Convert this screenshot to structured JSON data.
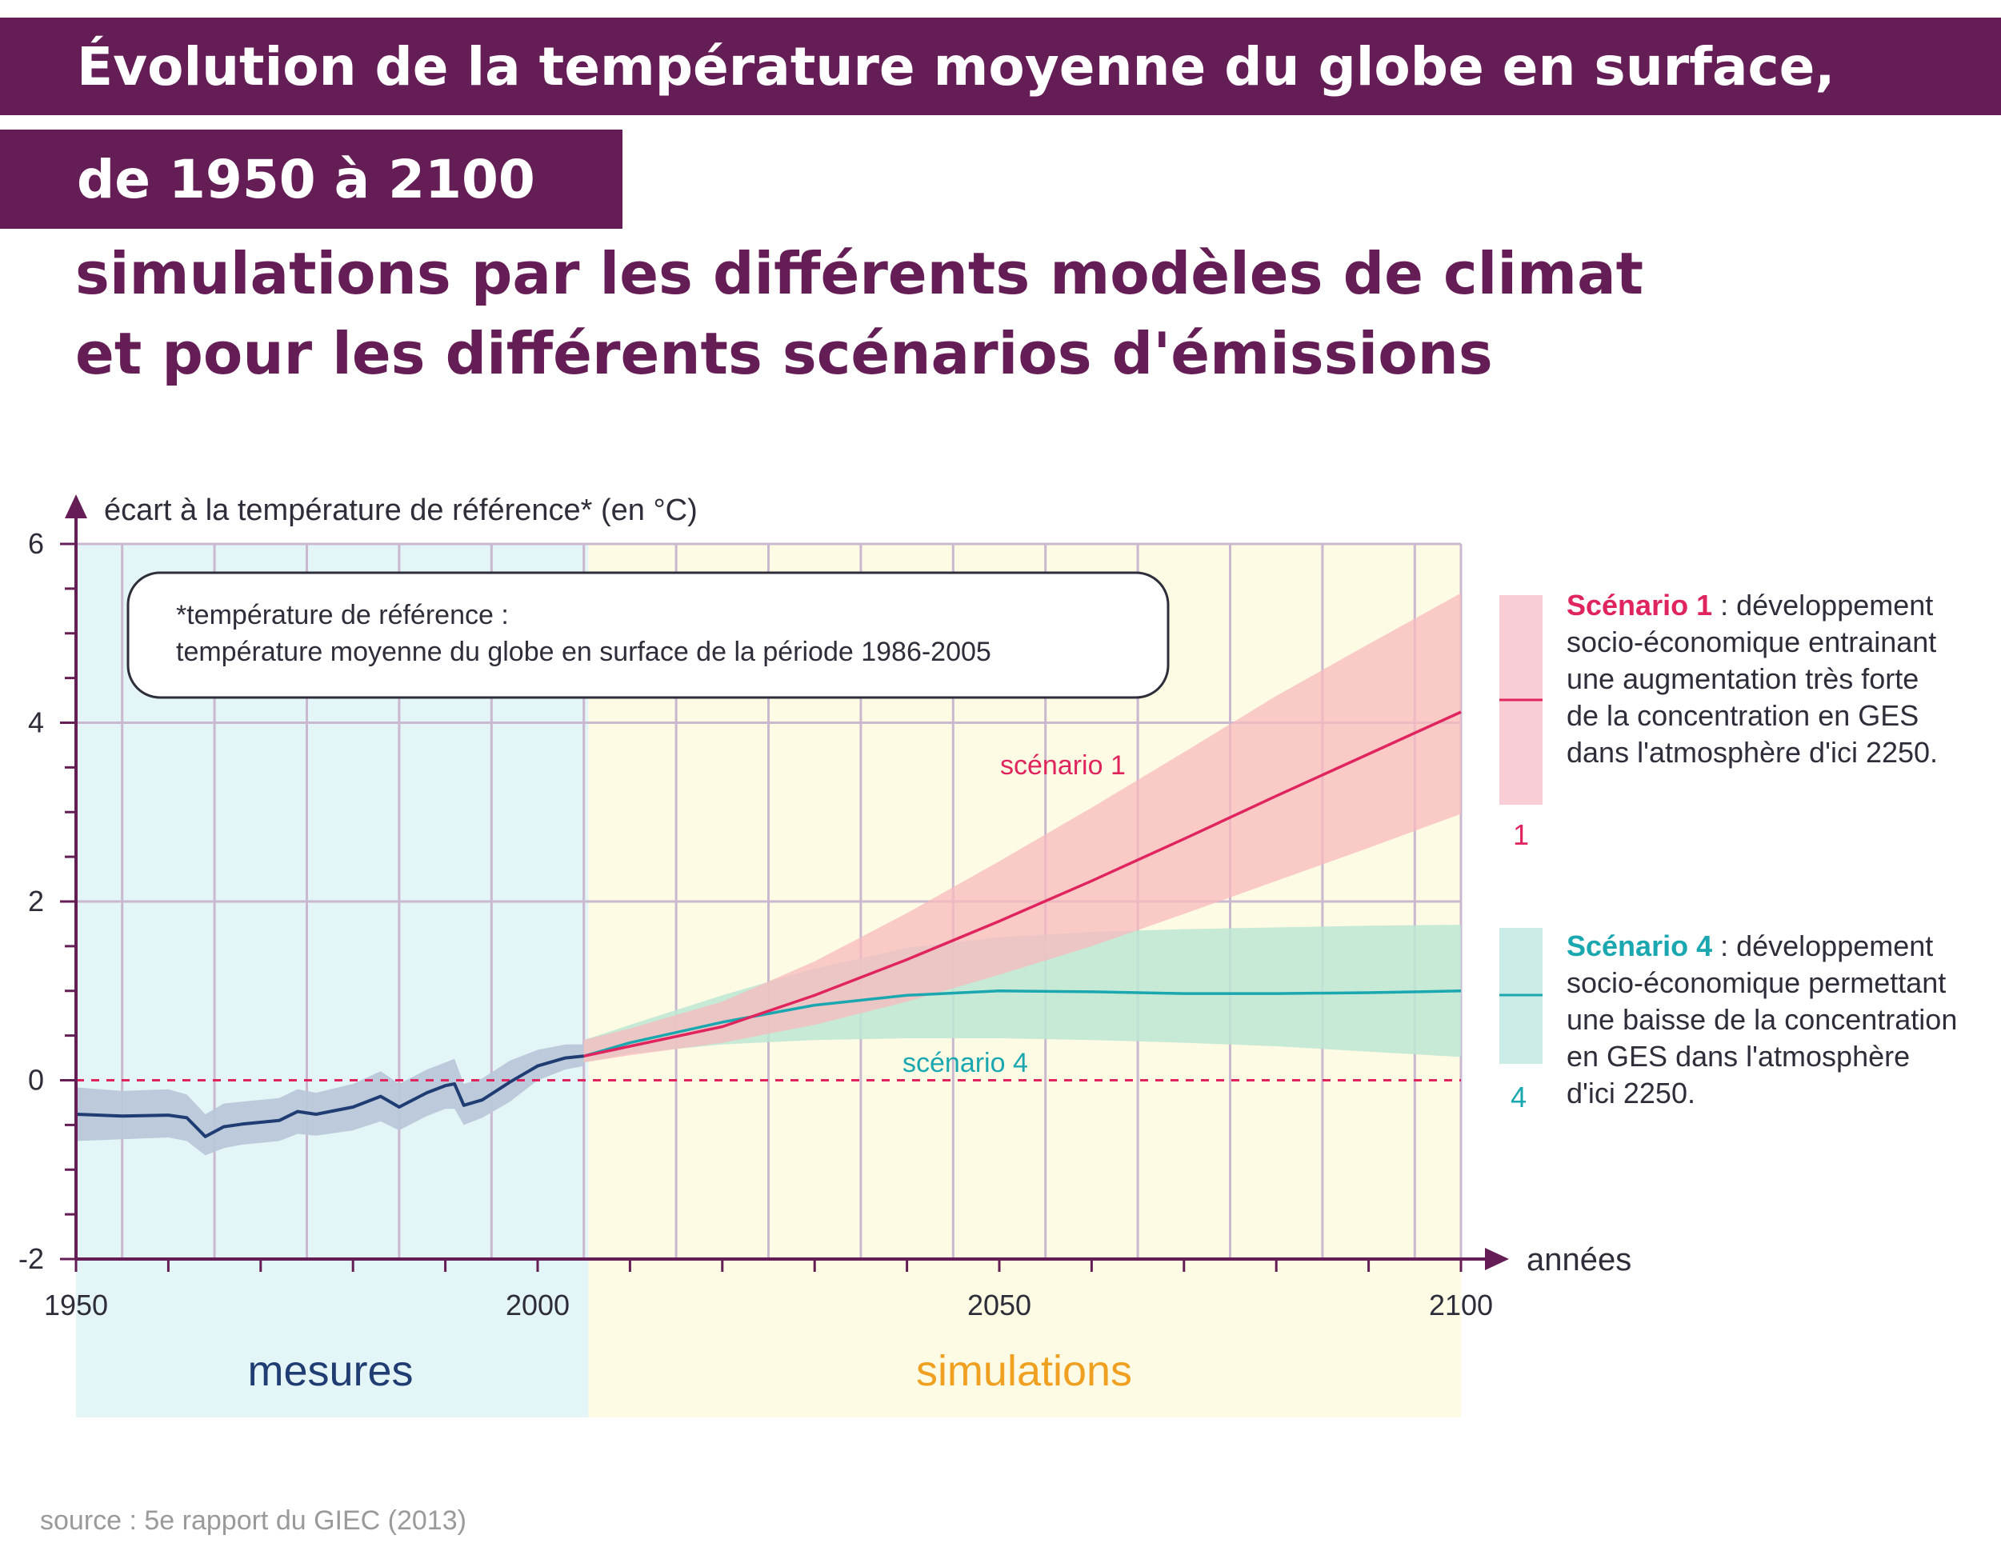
{
  "header": {
    "title_line_1": "Évolution de la température moyenne du globe en surface,",
    "title_line_2": "de 1950 à 2100",
    "subtitle_line_1": "simulations par les différents modèles de climat",
    "subtitle_line_2": "et pour les différents scénarios d'émissions"
  },
  "note": {
    "line_1": "*température  de référence :",
    "line_2": "température moyenne du globe en surface de la période 1986-2005"
  },
  "regions": {
    "measures_label": "mesures",
    "simulations_label": "simulations"
  },
  "legend": {
    "scenario_1": {
      "lead": "Scénario 1",
      "lines": [
        " : développement",
        "socio-économique entrainant",
        "une augmentation très forte",
        "de la concentration en GES",
        "dans l'atmosphère d'ici 2250."
      ],
      "number": "1"
    },
    "scenario_4": {
      "lead": "Scénario 4",
      "lines": [
        " : développement",
        "socio-économique permettant",
        "une baisse de la concentration",
        "en GES dans l'atmosphère",
        "d'ici 2250."
      ],
      "number": "4"
    }
  },
  "source": "source : 5e rapport du GIEC (2013)",
  "colors": {
    "title_band": "#651d55",
    "measures_bg": "#e3f5f6",
    "simulations_bg": "#fefbe4",
    "observed_line": "#1f3c73",
    "observed_band": "#b9c7d9",
    "scenario_1_line": "#e0245e",
    "scenario_1_band": "#f8b9bd",
    "scenario_4_line": "#1aa7b0",
    "scenario_4_band": "#bde6d4",
    "zero_line": "#e0245e",
    "axis": "#651d55"
  },
  "chart_data": {
    "type": "line",
    "ylabel": "écart à la température de référence* (en °C)",
    "xlabel": "années",
    "xlim": [
      1950,
      2100
    ],
    "ylim": [
      -2,
      6
    ],
    "x_ticks": [
      1950,
      2000,
      2050,
      2100
    ],
    "y_ticks": [
      -2,
      0,
      2,
      4,
      6
    ],
    "grid": true,
    "reference_line": 0,
    "regions": [
      {
        "name": "mesures",
        "from": 1950,
        "to": 2005.5
      },
      {
        "name": "simulations",
        "from": 2005.5,
        "to": 2100
      }
    ],
    "series": [
      {
        "x": [
          1950,
          1955,
          1960,
          1962,
          1964,
          1966,
          1968,
          1972,
          1974,
          1976,
          1980,
          1983,
          1985,
          1988,
          1990,
          1991,
          1992,
          1994,
          1997,
          2000,
          2003,
          2005
        ],
        "values": [
          -0.38,
          -0.4,
          -0.39,
          -0.42,
          -0.63,
          -0.52,
          -0.49,
          -0.45,
          -0.35,
          -0.38,
          -0.3,
          -0.18,
          -0.3,
          -0.14,
          -0.06,
          -0.04,
          -0.28,
          -0.22,
          -0.02,
          0.16,
          0.25,
          0.27
        ],
        "lower": [
          -0.68,
          -0.66,
          -0.64,
          -0.68,
          -0.84,
          -0.76,
          -0.72,
          -0.68,
          -0.6,
          -0.62,
          -0.56,
          -0.46,
          -0.56,
          -0.4,
          -0.32,
          -0.32,
          -0.5,
          -0.42,
          -0.24,
          0.0,
          0.12,
          0.16
        ],
        "upper": [
          -0.08,
          -0.12,
          -0.1,
          -0.16,
          -0.38,
          -0.26,
          -0.24,
          -0.2,
          -0.1,
          -0.14,
          -0.04,
          0.1,
          -0.04,
          0.12,
          0.2,
          0.24,
          -0.04,
          0.02,
          0.22,
          0.34,
          0.4,
          0.4
        ]
      },
      {
        "name": "scénario 1",
        "x": [
          2005,
          2010,
          2020,
          2030,
          2040,
          2050,
          2060,
          2070,
          2080,
          2090,
          2100
        ],
        "values": [
          0.27,
          0.38,
          0.6,
          0.95,
          1.35,
          1.78,
          2.23,
          2.7,
          3.18,
          3.65,
          4.12
        ],
        "lower": [
          0.2,
          0.28,
          0.42,
          0.62,
          0.88,
          1.18,
          1.5,
          1.86,
          2.23,
          2.6,
          2.98
        ],
        "upper": [
          0.45,
          0.58,
          0.88,
          1.33,
          1.87,
          2.45,
          3.05,
          3.67,
          4.3,
          4.88,
          5.45
        ]
      },
      {
        "name": "scénario 4",
        "x": [
          2005,
          2010,
          2020,
          2030,
          2040,
          2050,
          2060,
          2070,
          2080,
          2090,
          2100
        ],
        "values": [
          0.27,
          0.42,
          0.65,
          0.84,
          0.95,
          1.0,
          0.99,
          0.97,
          0.97,
          0.98,
          1.0
        ],
        "lower": [
          0.2,
          0.3,
          0.4,
          0.45,
          0.47,
          0.47,
          0.45,
          0.42,
          0.38,
          0.32,
          0.26
        ],
        "upper": [
          0.45,
          0.62,
          0.95,
          1.25,
          1.48,
          1.6,
          1.66,
          1.69,
          1.71,
          1.73,
          1.74
        ]
      }
    ]
  }
}
